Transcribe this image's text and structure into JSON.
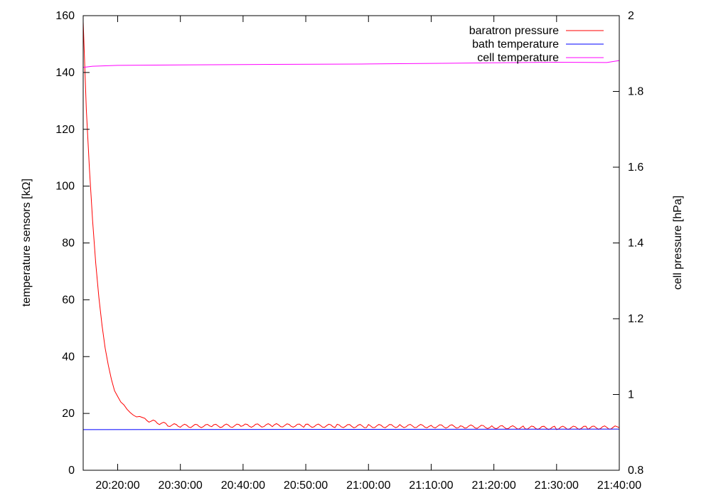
{
  "chart_data": {
    "type": "line",
    "xlabel": "",
    "ylabel_left": "temperature sensors [kΩ]",
    "ylabel_right": "cell pressure [hPa]",
    "x_range": [
      "20:14:30",
      "21:40:00"
    ],
    "x_ticks": [
      "20:20:00",
      "20:30:00",
      "20:40:00",
      "20:50:00",
      "21:00:00",
      "21:10:00",
      "21:20:00",
      "21:30:00",
      "21:40:00"
    ],
    "y_left_range": [
      0,
      160
    ],
    "y_left_ticks": [
      "0",
      "20",
      "40",
      "60",
      "80",
      "100",
      "120",
      "140",
      "160"
    ],
    "y_right_range": [
      0.8,
      2.0
    ],
    "y_right_ticks": [
      "0.8",
      "1",
      "1.2",
      "1.4",
      "1.6",
      "1.8",
      "2"
    ],
    "grid": false,
    "legend_position": "top-right",
    "series": [
      {
        "name": "baratron pressure",
        "axis": "left",
        "color": "#ff0000",
        "x": [
          "20:14:30",
          "20:15:00",
          "20:15:30",
          "20:16:00",
          "20:16:30",
          "20:17:00",
          "20:17:30",
          "20:18:00",
          "20:18:30",
          "20:19:00",
          "20:19:30",
          "20:20:00",
          "20:20:30",
          "20:21:00",
          "20:21:30",
          "20:22:00",
          "20:22:30",
          "20:23:00",
          "20:23:30",
          "20:24:00",
          "20:25:00",
          "20:26:00",
          "20:27:00",
          "20:28:00",
          "20:30:00",
          "20:35:00",
          "20:40:00",
          "20:45:00",
          "20:50:00",
          "20:55:00",
          "21:00:00",
          "21:05:00",
          "21:10:00",
          "21:15:00",
          "21:20:00",
          "21:25:00",
          "21:30:00",
          "21:35:00",
          "21:40:00"
        ],
        "values": [
          158,
          127,
          106,
          88,
          73,
          61,
          51,
          43,
          37,
          32,
          28,
          26,
          24,
          23,
          21,
          20.5,
          20,
          19,
          18.5,
          18,
          17.5,
          17,
          16.5,
          16,
          15.6,
          15.6,
          15.7,
          15.8,
          15.7,
          15.6,
          15.5,
          15.6,
          15.5,
          15.4,
          15.2,
          15.0,
          14.9,
          15.0,
          15.0
        ]
      },
      {
        "name": "bath temperature",
        "axis": "left",
        "color": "#0000ff",
        "x": [
          "20:14:30",
          "21:40:00"
        ],
        "values": [
          14.3,
          14.5
        ]
      },
      {
        "name": "cell temperature",
        "axis": "left",
        "color": "#ff00ff",
        "x": [
          "20:14:30",
          "20:16:00",
          "20:20:00",
          "20:40:00",
          "21:00:00",
          "21:10:00",
          "21:20:00",
          "21:30:00",
          "21:38:00",
          "21:40:00"
        ],
        "values": [
          141.8,
          142.2,
          142.5,
          142.8,
          143.0,
          143.2,
          143.4,
          143.6,
          143.5,
          144.2
        ]
      }
    ]
  }
}
